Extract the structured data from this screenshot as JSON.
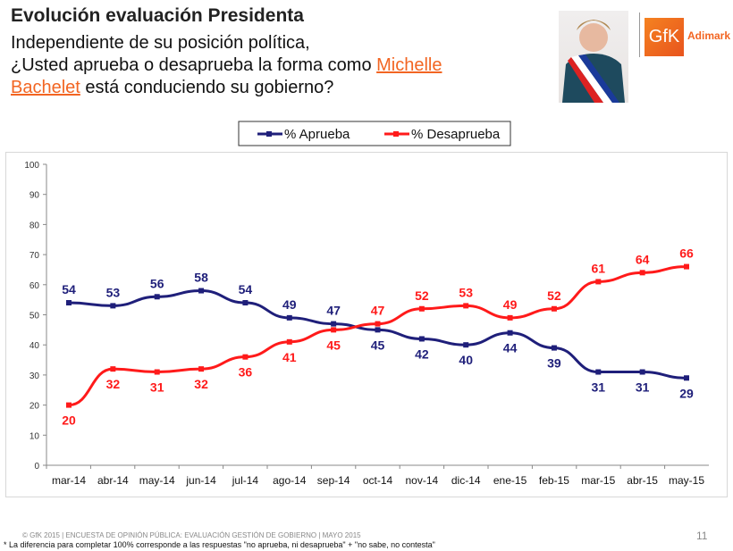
{
  "header": {
    "title": "Evolución evaluación Presidenta",
    "q1": "Independiente de su posición política,",
    "q2": "¿Usted aprueba o desaprueba la forma como ",
    "name1": "Michelle",
    "name2": "Bachelet",
    "q3": " está conduciendo su gobierno?"
  },
  "logo": {
    "brand": "GfK",
    "sub": "Adimark"
  },
  "footer": {
    "source": "© GfK 2015 | ENCUESTA DE OPINIÓN PÚBLICA: EVALUACIÓN GESTIÓN DE GOBIERNO | MAYO 2015",
    "note": "* La diferencia para completar 100% corresponde a las respuestas \"no aprueba, ni desaprueba\" + \"no sabe, no contesta\"",
    "page": "11"
  },
  "chart_data": {
    "type": "line",
    "categories": [
      "mar-14",
      "abr-14",
      "may-14",
      "jun-14",
      "jul-14",
      "ago-14",
      "sep-14",
      "oct-14",
      "nov-14",
      "dic-14",
      "ene-15",
      "feb-15",
      "mar-15",
      "abr-15",
      "may-15"
    ],
    "ylim": [
      0,
      100
    ],
    "yticks": [
      0,
      10,
      20,
      30,
      40,
      50,
      60,
      70,
      80,
      90,
      100
    ],
    "legend": "top",
    "series": [
      {
        "name": "% Aprueba",
        "color": "#1f1f7a",
        "values": [
          54,
          53,
          56,
          58,
          54,
          49,
          47,
          45,
          42,
          40,
          44,
          39,
          31,
          31,
          29
        ]
      },
      {
        "name": "% Desaprueba",
        "color": "#ff1a1a",
        "values": [
          20,
          32,
          31,
          32,
          36,
          41,
          45,
          47,
          52,
          53,
          49,
          52,
          61,
          64,
          66
        ]
      }
    ]
  }
}
